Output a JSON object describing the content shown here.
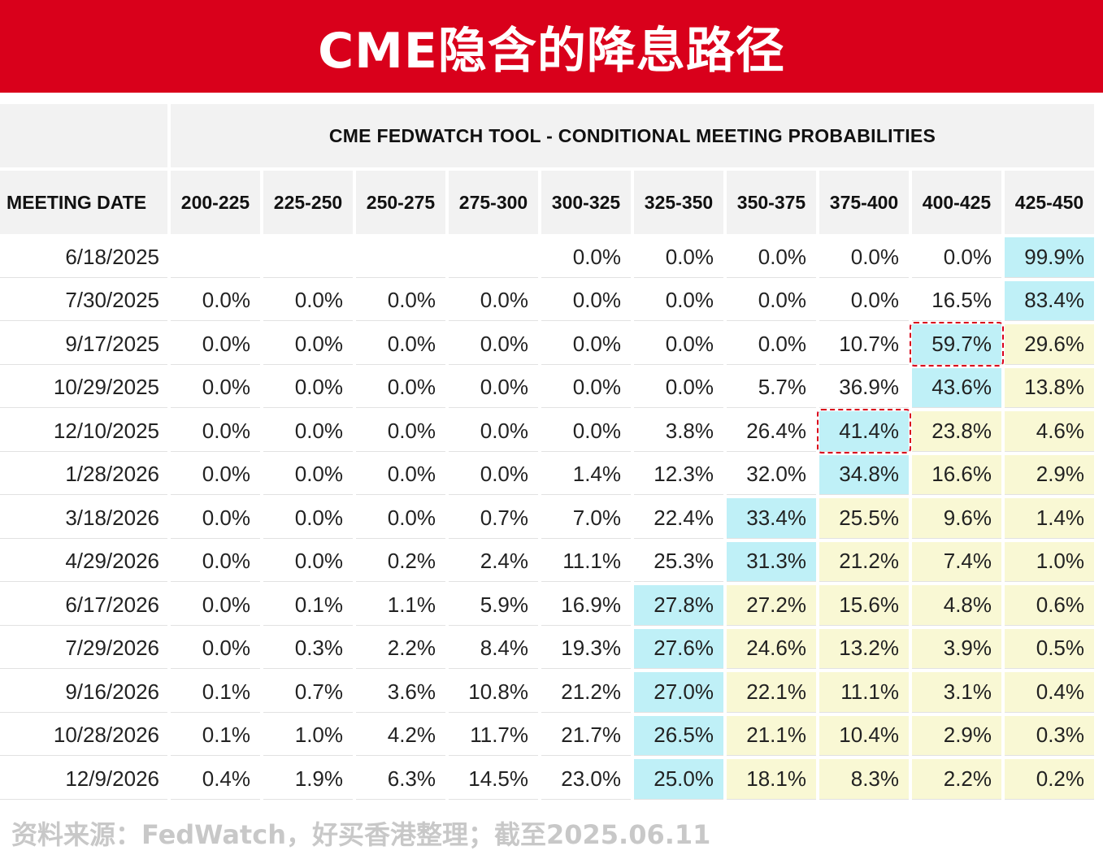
{
  "banner": {
    "title": "CME隐含的降息路径"
  },
  "table": {
    "title": "CME FEDWATCH TOOL - CONDITIONAL MEETING PROBABILITIES",
    "date_header": "MEETING DATE",
    "columns": [
      "200-225",
      "225-250",
      "250-275",
      "275-300",
      "300-325",
      "325-350",
      "350-375",
      "375-400",
      "400-425",
      "425-450"
    ]
  },
  "chart_data": {
    "type": "table",
    "title": "CME FEDWATCH TOOL - CONDITIONAL MEETING PROBABILITIES",
    "columns": [
      "200-225",
      "225-250",
      "250-275",
      "275-300",
      "300-325",
      "325-350",
      "350-375",
      "375-400",
      "400-425",
      "425-450"
    ],
    "rows": [
      {
        "date": "6/18/2025",
        "values": [
          "",
          "",
          "",
          "",
          "0.0%",
          "0.0%",
          "0.0%",
          "0.0%",
          "0.0%",
          "99.9%"
        ],
        "fills": [
          "",
          "",
          "",
          "",
          "",
          "",
          "",
          "",
          "",
          "blue"
        ],
        "marked": -1
      },
      {
        "date": "7/30/2025",
        "values": [
          "0.0%",
          "0.0%",
          "0.0%",
          "0.0%",
          "0.0%",
          "0.0%",
          "0.0%",
          "0.0%",
          "16.5%",
          "83.4%"
        ],
        "fills": [
          "",
          "",
          "",
          "",
          "",
          "",
          "",
          "",
          "",
          "blue"
        ],
        "marked": -1
      },
      {
        "date": "9/17/2025",
        "values": [
          "0.0%",
          "0.0%",
          "0.0%",
          "0.0%",
          "0.0%",
          "0.0%",
          "0.0%",
          "10.7%",
          "59.7%",
          "29.6%"
        ],
        "fills": [
          "",
          "",
          "",
          "",
          "",
          "",
          "",
          "",
          "blue",
          "yellow"
        ],
        "marked": 8
      },
      {
        "date": "10/29/2025",
        "values": [
          "0.0%",
          "0.0%",
          "0.0%",
          "0.0%",
          "0.0%",
          "0.0%",
          "5.7%",
          "36.9%",
          "43.6%",
          "13.8%"
        ],
        "fills": [
          "",
          "",
          "",
          "",
          "",
          "",
          "",
          "",
          "blue",
          "yellow"
        ],
        "marked": -1
      },
      {
        "date": "12/10/2025",
        "values": [
          "0.0%",
          "0.0%",
          "0.0%",
          "0.0%",
          "0.0%",
          "3.8%",
          "26.4%",
          "41.4%",
          "23.8%",
          "4.6%"
        ],
        "fills": [
          "",
          "",
          "",
          "",
          "",
          "",
          "",
          "blue",
          "yellow",
          "yellow"
        ],
        "marked": 7
      },
      {
        "date": "1/28/2026",
        "values": [
          "0.0%",
          "0.0%",
          "0.0%",
          "0.0%",
          "1.4%",
          "12.3%",
          "32.0%",
          "34.8%",
          "16.6%",
          "2.9%"
        ],
        "fills": [
          "",
          "",
          "",
          "",
          "",
          "",
          "",
          "blue",
          "yellow",
          "yellow"
        ],
        "marked": -1
      },
      {
        "date": "3/18/2026",
        "values": [
          "0.0%",
          "0.0%",
          "0.0%",
          "0.7%",
          "7.0%",
          "22.4%",
          "33.4%",
          "25.5%",
          "9.6%",
          "1.4%"
        ],
        "fills": [
          "",
          "",
          "",
          "",
          "",
          "",
          "blue",
          "yellow",
          "yellow",
          "yellow"
        ],
        "marked": -1
      },
      {
        "date": "4/29/2026",
        "values": [
          "0.0%",
          "0.0%",
          "0.2%",
          "2.4%",
          "11.1%",
          "25.3%",
          "31.3%",
          "21.2%",
          "7.4%",
          "1.0%"
        ],
        "fills": [
          "",
          "",
          "",
          "",
          "",
          "",
          "blue",
          "yellow",
          "yellow",
          "yellow"
        ],
        "marked": -1
      },
      {
        "date": "6/17/2026",
        "values": [
          "0.0%",
          "0.1%",
          "1.1%",
          "5.9%",
          "16.9%",
          "27.8%",
          "27.2%",
          "15.6%",
          "4.8%",
          "0.6%"
        ],
        "fills": [
          "",
          "",
          "",
          "",
          "",
          "blue",
          "yellow",
          "yellow",
          "yellow",
          "yellow"
        ],
        "marked": -1
      },
      {
        "date": "7/29/2026",
        "values": [
          "0.0%",
          "0.3%",
          "2.2%",
          "8.4%",
          "19.3%",
          "27.6%",
          "24.6%",
          "13.2%",
          "3.9%",
          "0.5%"
        ],
        "fills": [
          "",
          "",
          "",
          "",
          "",
          "blue",
          "yellow",
          "yellow",
          "yellow",
          "yellow"
        ],
        "marked": -1
      },
      {
        "date": "9/16/2026",
        "values": [
          "0.1%",
          "0.7%",
          "3.6%",
          "10.8%",
          "21.2%",
          "27.0%",
          "22.1%",
          "11.1%",
          "3.1%",
          "0.4%"
        ],
        "fills": [
          "",
          "",
          "",
          "",
          "",
          "blue",
          "yellow",
          "yellow",
          "yellow",
          "yellow"
        ],
        "marked": -1
      },
      {
        "date": "10/28/2026",
        "values": [
          "0.1%",
          "1.0%",
          "4.2%",
          "11.7%",
          "21.7%",
          "26.5%",
          "21.1%",
          "10.4%",
          "2.9%",
          "0.3%"
        ],
        "fills": [
          "",
          "",
          "",
          "",
          "",
          "blue",
          "yellow",
          "yellow",
          "yellow",
          "yellow"
        ],
        "marked": -1
      },
      {
        "date": "12/9/2026",
        "values": [
          "0.4%",
          "1.9%",
          "6.3%",
          "14.5%",
          "23.0%",
          "25.0%",
          "18.1%",
          "8.3%",
          "2.2%",
          "0.2%"
        ],
        "fills": [
          "",
          "",
          "",
          "",
          "",
          "blue",
          "yellow",
          "yellow",
          "yellow",
          "yellow"
        ],
        "marked": -1
      }
    ],
    "highlight_colors": {
      "blue": "#bff0f7",
      "yellow": "#f9f8d4",
      "marker": "#d9001b"
    }
  },
  "footer": {
    "source": "资料来源：FedWatch，好买香港整理；截至2025.06.11"
  }
}
